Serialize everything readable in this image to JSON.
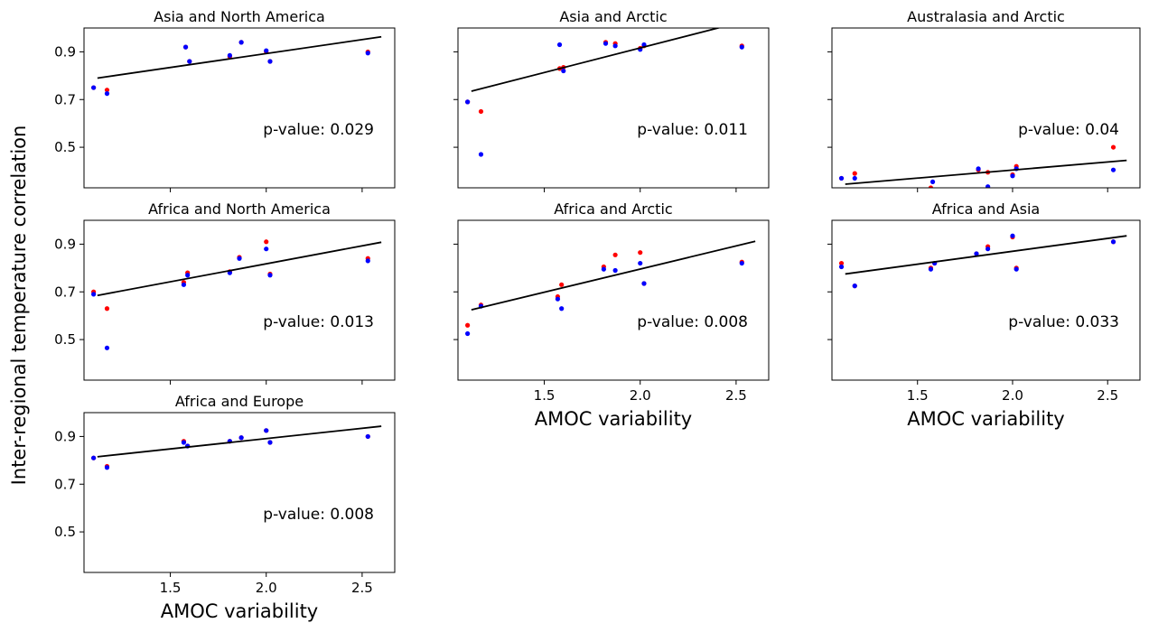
{
  "figure": {
    "ylabel": "Inter-regional temperature correlation",
    "xlabel": "AMOC variability"
  },
  "colors": {
    "series_a": "#ff0000",
    "series_b": "#0000ff",
    "fit": "#000000"
  },
  "chart_data": [
    {
      "type": "scatter",
      "title": "Asia and North America",
      "pvalue_text": "p-value: 0.029",
      "xlim": [
        1.05,
        2.67
      ],
      "ylim": [
        0.33,
        1.0
      ],
      "xticks": [
        "1.5",
        "2.0",
        "2.5"
      ],
      "yticks": [
        "0.5",
        "0.7",
        "0.9"
      ],
      "show_xticklabels": false,
      "show_yticklabels": true,
      "show_xlabel": false,
      "series": [
        {
          "color": "red",
          "points": [
            [
              1.1,
              0.75
            ],
            [
              1.17,
              0.74
            ],
            [
              1.58,
              0.92
            ],
            [
              1.6,
              0.86
            ],
            [
              1.81,
              0.88
            ],
            [
              1.87,
              0.94
            ],
            [
              2.0,
              0.9
            ],
            [
              2.02,
              0.86
            ],
            [
              2.53,
              0.9
            ]
          ]
        },
        {
          "color": "blue",
          "points": [
            [
              1.1,
              0.75
            ],
            [
              1.17,
              0.725
            ],
            [
              1.58,
              0.92
            ],
            [
              1.6,
              0.86
            ],
            [
              1.81,
              0.885
            ],
            [
              1.87,
              0.94
            ],
            [
              2.0,
              0.905
            ],
            [
              2.02,
              0.86
            ],
            [
              2.53,
              0.895
            ]
          ]
        }
      ],
      "fit": {
        "x": [
          1.12,
          2.6
        ],
        "y": [
          0.79,
          0.963
        ]
      }
    },
    {
      "type": "scatter",
      "title": "Asia and Arctic",
      "pvalue_text": "p-value: 0.011",
      "xlim": [
        1.05,
        2.67
      ],
      "ylim": [
        0.33,
        1.0
      ],
      "xticks": [
        "1.5",
        "2.0",
        "2.5"
      ],
      "yticks": [
        "0.5",
        "0.7",
        "0.9"
      ],
      "show_xticklabels": false,
      "show_yticklabels": false,
      "show_xlabel": false,
      "series": [
        {
          "color": "red",
          "points": [
            [
              1.1,
              0.69
            ],
            [
              1.17,
              0.65
            ],
            [
              1.58,
              0.83
            ],
            [
              1.6,
              0.835
            ],
            [
              1.82,
              0.94
            ],
            [
              1.87,
              0.935
            ],
            [
              2.0,
              0.915
            ],
            [
              2.02,
              0.925
            ],
            [
              2.53,
              0.925
            ]
          ]
        },
        {
          "color": "blue",
          "points": [
            [
              1.1,
              0.69
            ],
            [
              1.17,
              0.47
            ],
            [
              1.58,
              0.93
            ],
            [
              1.6,
              0.82
            ],
            [
              1.82,
              0.935
            ],
            [
              1.87,
              0.925
            ],
            [
              2.0,
              0.91
            ],
            [
              2.02,
              0.93
            ],
            [
              2.53,
              0.92
            ]
          ]
        }
      ],
      "fit": {
        "x": [
          1.12,
          2.6
        ],
        "y": [
          0.735,
          1.04
        ]
      }
    },
    {
      "type": "scatter",
      "title": "Australasia and Arctic",
      "pvalue_text": "p-value: 0.04",
      "xlim": [
        1.05,
        2.67
      ],
      "ylim": [
        0.33,
        1.0
      ],
      "xticks": [
        "1.5",
        "2.0",
        "2.5"
      ],
      "yticks": [
        "0.5",
        "0.7",
        "0.9"
      ],
      "show_xticklabels": false,
      "show_yticklabels": false,
      "show_xlabel": false,
      "series": [
        {
          "color": "red",
          "points": [
            [
              1.1,
              0.37
            ],
            [
              1.17,
              0.39
            ],
            [
              1.57,
              0.33
            ],
            [
              1.82,
              0.405
            ],
            [
              1.87,
              0.395
            ],
            [
              2.0,
              0.385
            ],
            [
              2.02,
              0.42
            ],
            [
              2.53,
              0.5
            ]
          ]
        },
        {
          "color": "blue",
          "points": [
            [
              1.1,
              0.37
            ],
            [
              1.17,
              0.37
            ],
            [
              1.58,
              0.355
            ],
            [
              1.82,
              0.41
            ],
            [
              1.87,
              0.335
            ],
            [
              2.0,
              0.38
            ],
            [
              2.02,
              0.41
            ],
            [
              2.53,
              0.405
            ]
          ]
        }
      ],
      "fit": {
        "x": [
          1.12,
          2.6
        ],
        "y": [
          0.345,
          0.445
        ]
      }
    },
    {
      "type": "scatter",
      "title": "Africa and North America",
      "pvalue_text": "p-value: 0.013",
      "xlim": [
        1.05,
        2.67
      ],
      "ylim": [
        0.33,
        1.0
      ],
      "xticks": [
        "1.5",
        "2.0",
        "2.5"
      ],
      "yticks": [
        "0.5",
        "0.7",
        "0.9"
      ],
      "show_xticklabels": false,
      "show_yticklabels": true,
      "show_xlabel": false,
      "series": [
        {
          "color": "red",
          "points": [
            [
              1.1,
              0.7
            ],
            [
              1.17,
              0.63
            ],
            [
              1.57,
              0.74
            ],
            [
              1.59,
              0.78
            ],
            [
              1.81,
              0.785
            ],
            [
              1.86,
              0.845
            ],
            [
              2.0,
              0.91
            ],
            [
              2.02,
              0.775
            ],
            [
              2.53,
              0.84
            ]
          ]
        },
        {
          "color": "blue",
          "points": [
            [
              1.1,
              0.69
            ],
            [
              1.17,
              0.465
            ],
            [
              1.57,
              0.73
            ],
            [
              1.59,
              0.77
            ],
            [
              1.81,
              0.78
            ],
            [
              1.86,
              0.84
            ],
            [
              2.0,
              0.88
            ],
            [
              2.02,
              0.77
            ],
            [
              2.53,
              0.83
            ]
          ]
        }
      ],
      "fit": {
        "x": [
          1.12,
          2.6
        ],
        "y": [
          0.685,
          0.908
        ]
      }
    },
    {
      "type": "scatter",
      "title": "Africa and Arctic",
      "pvalue_text": "p-value: 0.008",
      "xlim": [
        1.05,
        2.67
      ],
      "ylim": [
        0.33,
        1.0
      ],
      "xticks": [
        "1.5",
        "2.0",
        "2.5"
      ],
      "yticks": [
        "0.5",
        "0.7",
        "0.9"
      ],
      "show_xticklabels": true,
      "show_yticklabels": false,
      "show_xlabel": true,
      "series": [
        {
          "color": "red",
          "points": [
            [
              1.1,
              0.56
            ],
            [
              1.17,
              0.645
            ],
            [
              1.57,
              0.68
            ],
            [
              1.59,
              0.73
            ],
            [
              1.81,
              0.805
            ],
            [
              1.87,
              0.855
            ],
            [
              2.0,
              0.865
            ],
            [
              2.02,
              0.735
            ],
            [
              2.53,
              0.825
            ]
          ]
        },
        {
          "color": "blue",
          "points": [
            [
              1.1,
              0.525
            ],
            [
              1.17,
              0.64
            ],
            [
              1.57,
              0.67
            ],
            [
              1.59,
              0.63
            ],
            [
              1.81,
              0.795
            ],
            [
              1.87,
              0.79
            ],
            [
              2.0,
              0.82
            ],
            [
              2.02,
              0.735
            ],
            [
              2.53,
              0.82
            ]
          ]
        }
      ],
      "fit": {
        "x": [
          1.12,
          2.6
        ],
        "y": [
          0.625,
          0.912
        ]
      }
    },
    {
      "type": "scatter",
      "title": "Africa and Asia",
      "pvalue_text": "p-value: 0.033",
      "xlim": [
        1.05,
        2.67
      ],
      "ylim": [
        0.33,
        1.0
      ],
      "xticks": [
        "1.5",
        "2.0",
        "2.5"
      ],
      "yticks": [
        "0.5",
        "0.7",
        "0.9"
      ],
      "show_xticklabels": true,
      "show_yticklabels": false,
      "show_xlabel": true,
      "series": [
        {
          "color": "red",
          "points": [
            [
              1.1,
              0.82
            ],
            [
              1.17,
              0.725
            ],
            [
              1.57,
              0.8
            ],
            [
              1.59,
              0.82
            ],
            [
              1.81,
              0.86
            ],
            [
              1.87,
              0.89
            ],
            [
              2.0,
              0.93
            ],
            [
              2.02,
              0.8
            ],
            [
              2.53,
              0.91
            ]
          ]
        },
        {
          "color": "blue",
          "points": [
            [
              1.1,
              0.805
            ],
            [
              1.17,
              0.725
            ],
            [
              1.57,
              0.795
            ],
            [
              1.59,
              0.82
            ],
            [
              1.81,
              0.86
            ],
            [
              1.87,
              0.88
            ],
            [
              2.0,
              0.935
            ],
            [
              2.02,
              0.795
            ],
            [
              2.53,
              0.91
            ]
          ]
        }
      ],
      "fit": {
        "x": [
          1.12,
          2.6
        ],
        "y": [
          0.775,
          0.935
        ]
      }
    },
    {
      "type": "scatter",
      "title": "Africa and Europe",
      "pvalue_text": "p-value: 0.008",
      "xlim": [
        1.05,
        2.67
      ],
      "ylim": [
        0.33,
        1.0
      ],
      "xticks": [
        "1.5",
        "2.0",
        "2.5"
      ],
      "yticks": [
        "0.5",
        "0.7",
        "0.9"
      ],
      "show_xticklabels": true,
      "show_yticklabels": true,
      "show_xlabel": true,
      "series": [
        {
          "color": "red",
          "points": [
            [
              1.1,
              0.81
            ],
            [
              1.17,
              0.775
            ],
            [
              1.57,
              0.88
            ],
            [
              1.59,
              0.86
            ],
            [
              1.81,
              0.88
            ],
            [
              1.87,
              0.895
            ],
            [
              2.0,
              0.925
            ],
            [
              2.02,
              0.875
            ],
            [
              2.53,
              0.9
            ]
          ]
        },
        {
          "color": "blue",
          "points": [
            [
              1.1,
              0.81
            ],
            [
              1.17,
              0.77
            ],
            [
              1.57,
              0.875
            ],
            [
              1.59,
              0.86
            ],
            [
              1.81,
              0.88
            ],
            [
              1.87,
              0.895
            ],
            [
              2.0,
              0.925
            ],
            [
              2.02,
              0.875
            ],
            [
              2.53,
              0.9
            ]
          ]
        }
      ],
      "fit": {
        "x": [
          1.12,
          2.6
        ],
        "y": [
          0.815,
          0.943
        ]
      }
    }
  ]
}
